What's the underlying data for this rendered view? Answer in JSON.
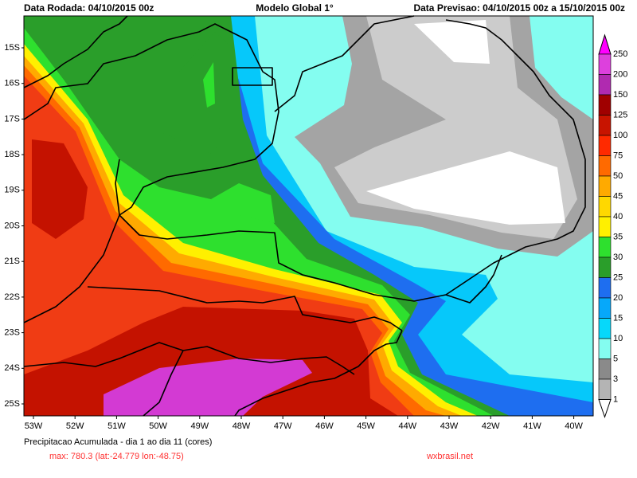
{
  "header": {
    "left": "Data Rodada: 04/10/2015 00z",
    "center": "Modelo Global 1°",
    "right": "Data Previsao: 04/10/2015 00z a 15/10/2015 00z"
  },
  "lat_labels": [
    "15S",
    "16S",
    "17S",
    "18S",
    "19S",
    "20S",
    "21S",
    "22S",
    "23S",
    "24S",
    "25S"
  ],
  "lon_labels": [
    "53W",
    "52W",
    "51W",
    "50W",
    "49W",
    "48W",
    "47W",
    "46W",
    "45W",
    "44W",
    "43W",
    "42W",
    "41W",
    "40W"
  ],
  "colorbar": {
    "labels": [
      "250",
      "200",
      "150",
      "125",
      "100",
      "75",
      "50",
      "45",
      "40",
      "35",
      "30",
      "25",
      "20",
      "15",
      "10",
      "5",
      "3",
      "1"
    ]
  },
  "footer": {
    "title": "Precipitacao Acumulada - dia 1 ao dia 11 (cores)",
    "max": "max: 780.3 (lat:-24.779 lon:-48.75)",
    "site": "wxbrasil.net"
  }
}
